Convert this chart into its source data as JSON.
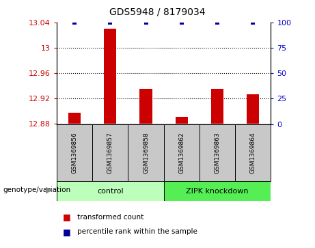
{
  "title": "GDS5948 / 8179034",
  "samples": [
    "GSM1369856",
    "GSM1369857",
    "GSM1369858",
    "GSM1369862",
    "GSM1369863",
    "GSM1369864"
  ],
  "bar_values": [
    12.898,
    13.03,
    12.935,
    12.891,
    12.935,
    12.927
  ],
  "percentile_values": [
    100,
    100,
    100,
    100,
    100,
    100
  ],
  "ymin": 12.88,
  "ymax": 13.04,
  "yticks": [
    12.88,
    12.92,
    12.96,
    13.0,
    13.04
  ],
  "ytick_labels": [
    "12.88",
    "12.92",
    "12.96",
    "13",
    "13.04"
  ],
  "right_yticks": [
    0,
    25,
    50,
    75,
    100
  ],
  "right_ytick_labels": [
    "0",
    "25",
    "50",
    "75",
    "100"
  ],
  "bar_color": "#cc0000",
  "percentile_color": "#000099",
  "group1_label": "control",
  "group2_label": "ZIPK knockdown",
  "group1_indices": [
    0,
    1,
    2
  ],
  "group2_indices": [
    3,
    4,
    5
  ],
  "group1_color": "#bbffbb",
  "group2_color": "#55ee55",
  "bar_width": 0.35,
  "legend_red_label": "transformed count",
  "legend_blue_label": "percentile rank within the sample",
  "genotype_label": "genotype/variation",
  "left_tick_color": "#cc0000",
  "right_tick_color": "#0000cc",
  "grid_color": "#000000",
  "sample_box_color": "#c8c8c8",
  "title_fontsize": 10
}
